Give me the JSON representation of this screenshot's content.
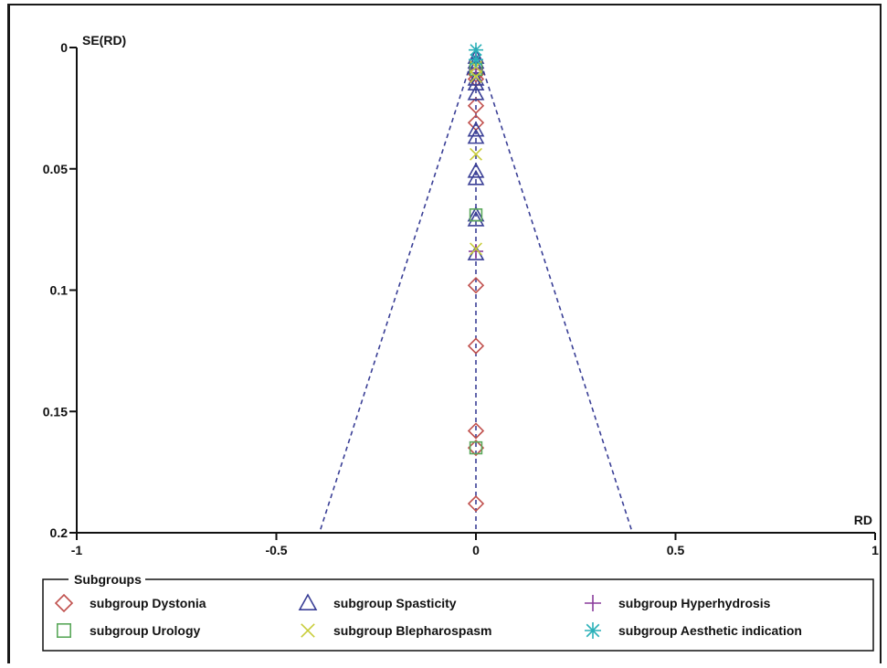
{
  "chart_data": {
    "type": "scatter",
    "title": "",
    "xlabel": "RD",
    "ylabel": "SE(RD)",
    "xlim": [
      -1,
      1
    ],
    "ylim": [
      0,
      0.2
    ],
    "y_inverted": true,
    "x_ticks": [
      "-1",
      "-0.5",
      "0",
      "0.5",
      "1"
    ],
    "y_ticks": [
      "0",
      "0.05",
      "0.1",
      "0.15",
      "0.2"
    ],
    "funnel": {
      "center": 0,
      "se_max": 0.2,
      "z": 1.96
    },
    "grid": false,
    "legend": {
      "title": "Subgroups",
      "placement": "bottom",
      "entries": [
        {
          "label": "subgroup Dystonia",
          "marker": "diamond",
          "color": "#c0504d"
        },
        {
          "label": "subgroup Spasticity",
          "marker": "triangle",
          "color": "#3a3f96"
        },
        {
          "label": "subgroup Hyperhydrosis",
          "marker": "plus",
          "color": "#8a3d9c"
        },
        {
          "label": "subgroup Urology",
          "marker": "square",
          "color": "#5aa85a"
        },
        {
          "label": "subgroup Blepharospasm",
          "marker": "x",
          "color": "#c8cc3a"
        },
        {
          "label": "subgroup Aesthetic indication",
          "marker": "asterisk",
          "color": "#2ab0b8"
        }
      ]
    },
    "series": [
      {
        "name": "subgroup Dystonia",
        "x": [
          0,
          0,
          0,
          0,
          0,
          0,
          0,
          0,
          0
        ],
        "y": [
          0.011,
          0.013,
          0.024,
          0.031,
          0.098,
          0.123,
          0.158,
          0.165,
          0.188
        ]
      },
      {
        "name": "subgroup Spasticity",
        "x": [
          0,
          0,
          0,
          0,
          0,
          0,
          0,
          0,
          0,
          0,
          0,
          0,
          0
        ],
        "y": [
          0.004,
          0.006,
          0.008,
          0.013,
          0.015,
          0.019,
          0.034,
          0.037,
          0.051,
          0.054,
          0.069,
          0.071,
          0.085
        ]
      },
      {
        "name": "subgroup Hyperhydrosis",
        "x": [
          0,
          0
        ],
        "y": [
          0.009,
          0.084
        ]
      },
      {
        "name": "subgroup Urology",
        "x": [
          0,
          0,
          0
        ],
        "y": [
          0.009,
          0.069,
          0.165
        ]
      },
      {
        "name": "subgroup Blepharospasm",
        "x": [
          0,
          0,
          0,
          0
        ],
        "y": [
          0.008,
          0.012,
          0.044,
          0.083
        ]
      },
      {
        "name": "subgroup Aesthetic indication",
        "x": [
          0,
          0
        ],
        "y": [
          0.001,
          0.005
        ]
      }
    ]
  }
}
